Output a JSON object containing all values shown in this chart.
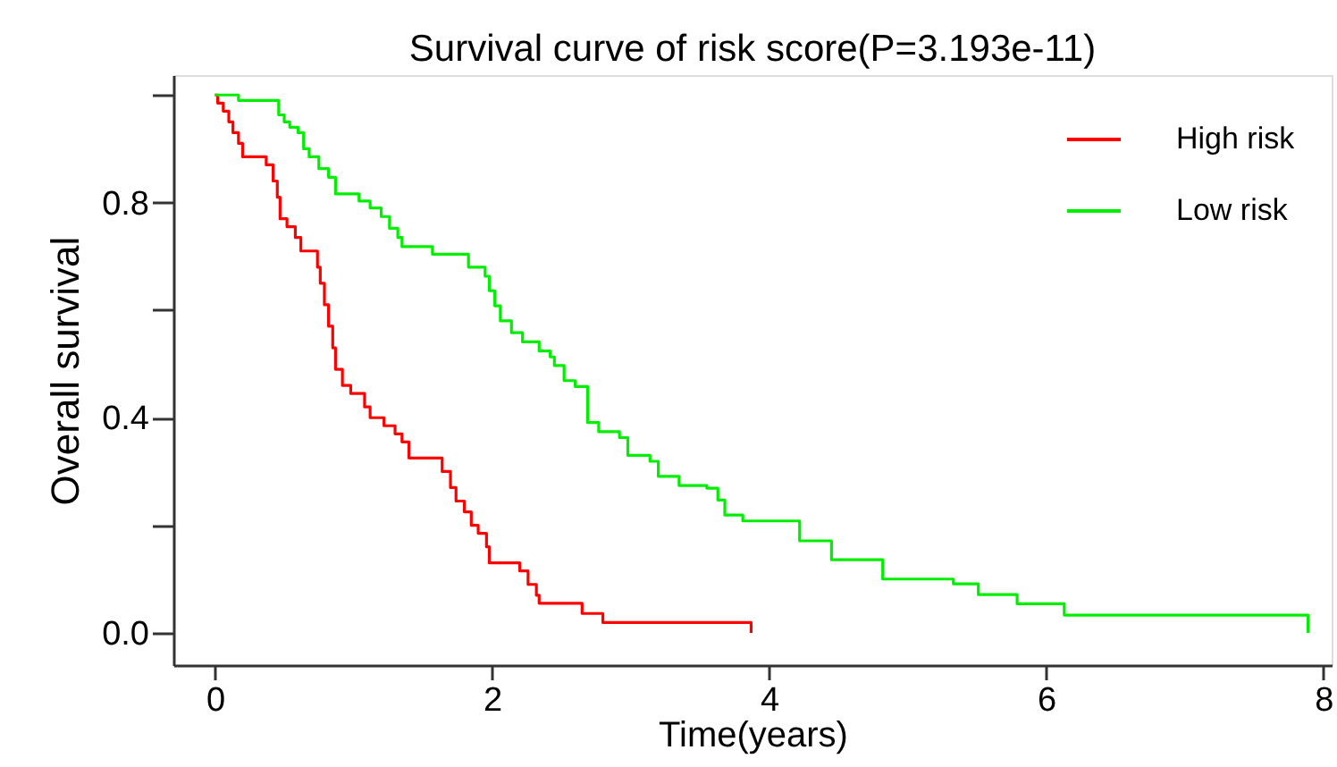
{
  "chart_data": {
    "type": "step",
    "title": "Survival curve of risk score(P=3.193e-11)",
    "xlabel": "Time(years)",
    "ylabel": "Overall survival",
    "xlim": [
      -0.3,
      8.06
    ],
    "ylim": [
      -0.06,
      1.037
    ],
    "xticks": [
      0,
      2,
      4,
      6,
      8
    ],
    "yticks": [
      {
        "value": 0,
        "label": "0.0"
      },
      {
        "value": 0.2,
        "label": null
      },
      0.4,
      {
        "value": 0.6,
        "label": null
      },
      0.8,
      {
        "value": 1.0,
        "label": null
      }
    ],
    "grid": false,
    "legend": "top right",
    "line_style": "solid",
    "series": [
      {
        "name": "High risk",
        "color": "#ff0000",
        "x": [
          0,
          0.02,
          0.06,
          0.1,
          0.13,
          0.17,
          0.2,
          0.37,
          0.42,
          0.45,
          0.47,
          0.52,
          0.58,
          0.62,
          0.74,
          0.76,
          0.79,
          0.82,
          0.85,
          0.87,
          0.92,
          0.98,
          1.08,
          1.12,
          1.22,
          1.3,
          1.35,
          1.4,
          1.64,
          1.7,
          1.74,
          1.8,
          1.85,
          1.9,
          1.96,
          1.98,
          2.2,
          2.26,
          2.32,
          2.34,
          2.65,
          2.8,
          3.87,
          3.87
        ],
        "values": [
          1.0,
          0.985,
          0.97,
          0.95,
          0.93,
          0.91,
          0.885,
          0.87,
          0.84,
          0.81,
          0.77,
          0.755,
          0.735,
          0.71,
          0.68,
          0.65,
          0.61,
          0.57,
          0.53,
          0.49,
          0.46,
          0.445,
          0.42,
          0.4,
          0.385,
          0.37,
          0.355,
          0.325,
          0.3,
          0.27,
          0.245,
          0.225,
          0.2,
          0.185,
          0.16,
          0.13,
          0.115,
          0.09,
          0.07,
          0.055,
          0.036,
          0.019,
          0.019,
          0.0
        ]
      },
      {
        "name": "Low risk",
        "color": "#00ee00",
        "x": [
          0,
          0.17,
          0.46,
          0.5,
          0.54,
          0.6,
          0.64,
          0.68,
          0.75,
          0.82,
          0.87,
          1.04,
          1.12,
          1.2,
          1.26,
          1.32,
          1.35,
          1.57,
          1.83,
          1.95,
          1.98,
          2.02,
          2.06,
          2.14,
          2.22,
          2.34,
          2.42,
          2.45,
          2.52,
          2.6,
          2.69,
          2.77,
          2.92,
          2.98,
          3.14,
          3.2,
          3.35,
          3.55,
          3.63,
          3.68,
          3.81,
          4.22,
          4.45,
          4.82,
          5.33,
          5.51,
          5.79,
          6.13,
          7.89,
          7.89
        ],
        "values": [
          1.0,
          0.99,
          0.963,
          0.95,
          0.94,
          0.93,
          0.9,
          0.885,
          0.863,
          0.847,
          0.816,
          0.803,
          0.79,
          0.774,
          0.752,
          0.735,
          0.718,
          0.704,
          0.68,
          0.663,
          0.636,
          0.608,
          0.58,
          0.558,
          0.541,
          0.524,
          0.513,
          0.497,
          0.469,
          0.458,
          0.391,
          0.374,
          0.363,
          0.33,
          0.319,
          0.291,
          0.274,
          0.269,
          0.247,
          0.219,
          0.208,
          0.171,
          0.136,
          0.1,
          0.091,
          0.071,
          0.054,
          0.033,
          0.033,
          0.0
        ]
      }
    ]
  }
}
